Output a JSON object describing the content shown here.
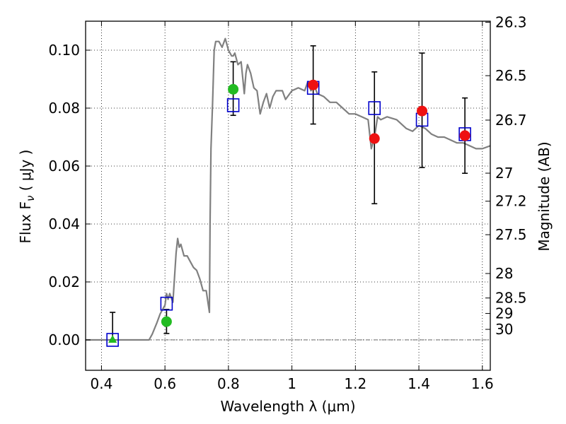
{
  "chart_data": {
    "type": "scatter",
    "xlabel": "Wavelength  λ (μm)",
    "ylabel": "Flux  F",
    "ylabel_sub": "ν",
    "ylabel_unit": "  ( μJy )",
    "y2label": "Magnitude (AB)",
    "xlim": [
      0.35,
      1.625
    ],
    "ylim": [
      -0.0105,
      0.11
    ],
    "grid": true,
    "x_ticks": [
      {
        "value": 0.4,
        "label": "0.4"
      },
      {
        "value": 0.6,
        "label": "0.6"
      },
      {
        "value": 0.8,
        "label": "0.8"
      },
      {
        "value": 1.0,
        "label": "1"
      },
      {
        "value": 1.2,
        "label": "1.2"
      },
      {
        "value": 1.4,
        "label": "1.4"
      },
      {
        "value": 1.6,
        "label": "1.6"
      }
    ],
    "y_ticks": [
      {
        "value": 0.0,
        "label": "0.00"
      },
      {
        "value": 0.02,
        "label": "0.02"
      },
      {
        "value": 0.04,
        "label": "0.04"
      },
      {
        "value": 0.06,
        "label": "0.06"
      },
      {
        "value": 0.08,
        "label": "0.08"
      },
      {
        "value": 0.1,
        "label": "0.10"
      }
    ],
    "y2_ticks": [
      {
        "value": 26.3,
        "label": "26.3"
      },
      {
        "value": 26.5,
        "label": "26.5"
      },
      {
        "value": 26.7,
        "label": "26.7"
      },
      {
        "value": 27.0,
        "label": "27"
      },
      {
        "value": 27.2,
        "label": "27.2"
      },
      {
        "value": 27.5,
        "label": "27.5"
      },
      {
        "value": 28.0,
        "label": "28"
      },
      {
        "value": 28.5,
        "label": "28.5"
      },
      {
        "value": 29.0,
        "label": "29"
      },
      {
        "value": 30.0,
        "label": "30"
      }
    ],
    "zero_line": {
      "y": 0.0,
      "color": "#555555"
    },
    "sed_model": {
      "color": "#808080",
      "x": [
        0.35,
        0.55,
        0.56,
        0.575,
        0.585,
        0.595,
        0.6,
        0.605,
        0.61,
        0.615,
        0.625,
        0.635,
        0.64,
        0.645,
        0.65,
        0.66,
        0.67,
        0.68,
        0.69,
        0.7,
        0.71,
        0.72,
        0.73,
        0.74,
        0.742,
        0.745,
        0.75,
        0.755,
        0.76,
        0.77,
        0.78,
        0.79,
        0.8,
        0.81,
        0.815,
        0.82,
        0.83,
        0.84,
        0.85,
        0.855,
        0.86,
        0.87,
        0.88,
        0.89,
        0.9,
        0.91,
        0.92,
        0.93,
        0.94,
        0.95,
        0.96,
        0.97,
        0.98,
        1.0,
        1.02,
        1.04,
        1.05,
        1.06,
        1.07,
        1.08,
        1.1,
        1.12,
        1.14,
        1.16,
        1.18,
        1.2,
        1.22,
        1.24,
        1.25,
        1.26,
        1.27,
        1.28,
        1.3,
        1.33,
        1.36,
        1.38,
        1.4,
        1.42,
        1.44,
        1.46,
        1.48,
        1.5,
        1.52,
        1.54,
        1.56,
        1.58,
        1.6,
        1.625
      ],
      "y": [
        0.0,
        0.0,
        0.002,
        0.006,
        0.009,
        0.011,
        0.012,
        0.016,
        0.014,
        0.016,
        0.013,
        0.03,
        0.035,
        0.032,
        0.033,
        0.029,
        0.029,
        0.027,
        0.025,
        0.024,
        0.021,
        0.017,
        0.017,
        0.0095,
        0.04,
        0.066,
        0.082,
        0.1,
        0.103,
        0.103,
        0.101,
        0.104,
        0.1,
        0.098,
        0.098,
        0.099,
        0.095,
        0.096,
        0.085,
        0.092,
        0.095,
        0.092,
        0.087,
        0.086,
        0.078,
        0.082,
        0.085,
        0.08,
        0.084,
        0.086,
        0.086,
        0.086,
        0.083,
        0.086,
        0.087,
        0.086,
        0.089,
        0.086,
        0.088,
        0.085,
        0.084,
        0.082,
        0.082,
        0.08,
        0.078,
        0.078,
        0.077,
        0.076,
        0.066,
        0.07,
        0.077,
        0.076,
        0.077,
        0.076,
        0.073,
        0.072,
        0.074,
        0.073,
        0.071,
        0.07,
        0.07,
        0.069,
        0.068,
        0.068,
        0.067,
        0.066,
        0.066,
        0.067
      ]
    },
    "markers": [
      {
        "name": "observed-errorbar",
        "shape": "errorbar",
        "color": "#000000",
        "points": [
          {
            "x": 0.435,
            "y": 0.0,
            "low": 0.0,
            "high": 0.0095
          },
          {
            "x": 0.605,
            "y": 0.0065,
            "low": 0.0022,
            "high": 0.0105
          },
          {
            "x": 0.815,
            "y": 0.086,
            "low": 0.0775,
            "high": 0.096
          },
          {
            "x": 1.067,
            "y": 0.088,
            "low": 0.0745,
            "high": 0.1015
          },
          {
            "x": 1.26,
            "y": 0.0695,
            "low": 0.047,
            "high": 0.0925
          },
          {
            "x": 1.41,
            "y": 0.079,
            "low": 0.0595,
            "high": 0.099
          },
          {
            "x": 1.545,
            "y": 0.0705,
            "low": 0.0575,
            "high": 0.0835
          }
        ]
      },
      {
        "name": "model-band-flux",
        "shape": "open-square",
        "color": "#0000cc",
        "points": [
          {
            "x": 0.435,
            "y": 0.0
          },
          {
            "x": 0.605,
            "y": 0.0125
          },
          {
            "x": 0.815,
            "y": 0.081
          },
          {
            "x": 1.067,
            "y": 0.087
          },
          {
            "x": 1.26,
            "y": 0.08
          },
          {
            "x": 1.41,
            "y": 0.076
          },
          {
            "x": 1.545,
            "y": 0.071
          }
        ]
      },
      {
        "name": "optical-detection",
        "shape": "circle",
        "color": "#22bb22",
        "points": [
          {
            "x": 0.605,
            "y": 0.0063
          },
          {
            "x": 0.815,
            "y": 0.0865
          }
        ]
      },
      {
        "name": "optical-limit",
        "shape": "triangle",
        "color": "#22bb22",
        "points": [
          {
            "x": 0.435,
            "y": 0.0
          }
        ]
      },
      {
        "name": "nir-detection",
        "shape": "circle",
        "color": "#ee1111",
        "points": [
          {
            "x": 1.067,
            "y": 0.088
          },
          {
            "x": 1.26,
            "y": 0.0695
          },
          {
            "x": 1.41,
            "y": 0.079
          },
          {
            "x": 1.545,
            "y": 0.0705
          }
        ]
      }
    ]
  }
}
